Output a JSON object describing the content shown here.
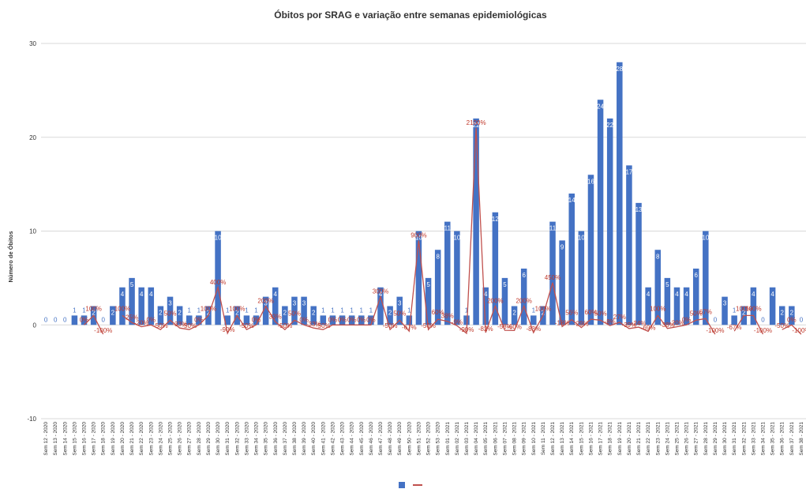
{
  "colors": {
    "bar": "#4472c4",
    "line": "#c0504d",
    "grid": "#d9d9d9"
  },
  "chart_data": {
    "type": "bar",
    "title": "Óbitos por SRAG e variação entre semanas epidemiológicas",
    "ylabel": "Número de Óbitos",
    "xlabel": "",
    "ylim": [
      -10,
      30
    ],
    "yticks": [
      -10,
      0,
      10,
      20,
      30
    ],
    "grid": true,
    "legend": "bottom",
    "categories": [
      "Sem 12 - 2020",
      "Sem 13 - 2020",
      "Sem 14 - 2020",
      "Sem 15 - 2020",
      "Sem 16 - 2020",
      "Sem 17 - 2020",
      "Sem 18 - 2020",
      "Sem 19 - 2020",
      "Sem 20 - 2020",
      "Sem 21 - 2020",
      "Sem 22 - 2020",
      "Sem 23 - 2020",
      "Sem 24 - 2020",
      "Sem 25 - 2020",
      "Sem 26 - 2020",
      "Sem 27 - 2020",
      "Sem 28 - 2020",
      "Sem 29 - 2020",
      "Sem 30 - 2020",
      "Sem 31 - 2020",
      "Sem 32 - 2020",
      "Sem 33 - 2020",
      "Sem 34 - 2020",
      "Sem 35 - 2020",
      "Sem 36 - 2020",
      "Sem 37 - 2020",
      "Sem 38 - 2020",
      "Sem 39 - 2020",
      "Sem 40 - 2020",
      "Sem 41 - 2020",
      "Sem 42 - 2020",
      "Sem 43 - 2020",
      "Sem 44 - 2020",
      "Sem 45 - 2020",
      "Sem 46 - 2020",
      "Sem 47 - 2020",
      "Sem 48 - 2020",
      "Sem 49 - 2020",
      "Sem 50 - 2020",
      "Sem 51 - 2020",
      "Sem 52 - 2020",
      "Sem 53 - 2020",
      "Sem 01 - 2021",
      "Sem 02 - 2021",
      "Sem 03 - 2021",
      "Sem 04 - 2021",
      "Sem 05 - 2021",
      "Sem 06 - 2021",
      "Sem 07 - 2021",
      "Sem 08 - 2021",
      "Sem 09 - 2021",
      "Sem 10 - 2021",
      "Sem 11 - 2021",
      "Sem 12 - 2021",
      "Sem 13 - 2021",
      "Sem 14 - 2021",
      "Sem 15 - 2021",
      "Sem 16 - 2021",
      "Sem 17 - 2021",
      "Sem 18 - 2021",
      "Sem 19 - 2021",
      "Sem 20 - 2021",
      "Sem 21 - 2021",
      "Sem 22 - 2021",
      "Sem 23 - 2021",
      "Sem 24 - 2021",
      "Sem 25 - 2021",
      "Sem 26 - 2021",
      "Sem 27 - 2021",
      "Sem 28 - 2021",
      "Sem 29 - 2021",
      "Sem 30 - 2021",
      "Sem 31 - 2021",
      "Sem 32 - 2021",
      "Sem 33 - 2021",
      "Sem 34 - 2021",
      "Sem 35 - 2021",
      "Sem 36 - 2021",
      "Sem 37 - 2021",
      "Sem 38 - 2021"
    ],
    "series": [
      {
        "type": "bar",
        "values": [
          0,
          0,
          0,
          1,
          1,
          2,
          0,
          2,
          4,
          5,
          4,
          4,
          2,
          3,
          2,
          1,
          1,
          2,
          10,
          1,
          2,
          1,
          1,
          3,
          4,
          2,
          3,
          3,
          2,
          1,
          1,
          1,
          1,
          1,
          1,
          4,
          2,
          3,
          1,
          10,
          5,
          8,
          11,
          10,
          1,
          22,
          4,
          12,
          5,
          2,
          6,
          1,
          2,
          11,
          9,
          14,
          10,
          16,
          24,
          22,
          28,
          17,
          13,
          4,
          8,
          5,
          4,
          4,
          6,
          10,
          0,
          3,
          1,
          2,
          4,
          0,
          4,
          2,
          2,
          0
        ],
        "labels": [
          "0",
          "0",
          "0",
          "1",
          "1",
          "2",
          "0",
          "2",
          "4",
          "5",
          "4",
          "4",
          "2",
          "3",
          "2",
          "1",
          "1",
          "2",
          "10",
          "1",
          "2",
          "1",
          "1",
          "3",
          "4",
          "2",
          "3",
          "3",
          "2",
          "1",
          "1",
          "1",
          "1",
          "1",
          "1",
          "4",
          "2",
          "3",
          "1",
          "10",
          "5",
          "8",
          "11",
          "10",
          "1",
          "22",
          "4",
          "12",
          "5",
          "2",
          "6",
          "1",
          "2",
          "11",
          "9",
          "14",
          "10",
          "16",
          "24",
          "22",
          "28",
          "17",
          "13",
          "4",
          "8",
          "5",
          "4",
          "4",
          "6",
          "10",
          "0",
          "3",
          "1",
          "2",
          "4",
          "0",
          "4",
          "2",
          "2",
          "0"
        ]
      },
      {
        "type": "line",
        "values": [
          null,
          null,
          null,
          null,
          0,
          1,
          -1,
          null,
          1,
          0.25,
          -0.2,
          0,
          -0.5,
          0.5,
          -0.33,
          -0.5,
          0,
          1,
          4,
          -0.9,
          1,
          -0.5,
          0,
          2,
          0.33,
          -0.5,
          0.5,
          0,
          -0.33,
          -0.5,
          0,
          0,
          0,
          0,
          0,
          3,
          -0.5,
          0.5,
          -0.67,
          9,
          -0.5,
          0.6,
          0.38,
          -0.09,
          -0.9,
          21,
          -0.82,
          2,
          -0.58,
          -0.6,
          2,
          -0.83,
          1,
          4.5,
          -0.18,
          0.56,
          -0.29,
          0.6,
          0.5,
          -0.08,
          0.27,
          -0.39,
          -0.24,
          -0.69,
          1,
          -0.38,
          -0.2,
          0,
          0.5,
          0.67,
          -1,
          null,
          -0.67,
          1,
          1,
          -1,
          null,
          -0.5,
          0,
          -1
        ],
        "labels": [
          "",
          "",
          "",
          "",
          "0%",
          "100%",
          "-100%",
          "",
          "100%",
          "25%",
          "-20%",
          "0%",
          "-50%",
          "50%",
          "-33%",
          "-50%",
          "0%",
          "100%",
          "400%",
          "-90%",
          "100%",
          "-50%",
          "0%",
          "200%",
          "33%",
          "-50%",
          "50%",
          "0%",
          "-33%",
          "-50%",
          "0%",
          "0%",
          "0%",
          "0%",
          "0%",
          "300%",
          "-50%",
          "50%",
          "-67%",
          "900%",
          "-50%",
          "60%",
          "38%",
          "-9%",
          "-90%",
          "2100%",
          "-82%",
          "200%",
          "-58%",
          "-60%",
          "200%",
          "-83%",
          "100%",
          "450%",
          "-18%",
          "56%",
          "-29%",
          "60%",
          "50%",
          "-8%",
          "27%",
          "-39%",
          "-24%",
          "-69%",
          "100%",
          "-38%",
          "-20%",
          "0%",
          "50%",
          "67%",
          "-100%",
          "",
          "-67%",
          "100%",
          "100%",
          "-100%",
          "",
          "-50%",
          "0%",
          "-100%"
        ]
      }
    ]
  }
}
